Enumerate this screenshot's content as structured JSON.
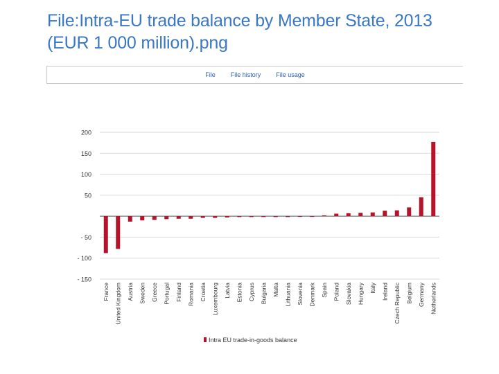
{
  "page": {
    "title": "File:Intra-EU trade balance by Member State, 2013 (EUR 1 000 million).png"
  },
  "tabs": [
    {
      "label": "File"
    },
    {
      "label": "File history"
    },
    {
      "label": "File usage"
    }
  ],
  "colors": {
    "title": "#3a77c5",
    "bar": "#b5132c",
    "link": "#2a5db0"
  },
  "chart_data": {
    "type": "bar",
    "title": "",
    "xlabel": "",
    "ylabel": "",
    "ylim": [
      -150,
      200
    ],
    "yticks": [
      200,
      150,
      100,
      50,
      0,
      -50,
      -100,
      -150
    ],
    "ytick_labels": [
      "200",
      "150",
      "100",
      "50",
      "",
      "- 50",
      "- 100",
      "- 150"
    ],
    "legend": "Intra EU trade-in-goods balance",
    "legend_position": "bottom-center",
    "categories": [
      "France",
      "United Kingdom",
      "Austria",
      "Sweden",
      "Greece",
      "Portugal",
      "Finland",
      "Romania",
      "Croatia",
      "Luxembourg",
      "Latvia",
      "Estonia",
      "Cyprus",
      "Bulgaria",
      "Malta",
      "Lithuania",
      "Slovenia",
      "Denmark",
      "Spain",
      "Poland",
      "Slovakia",
      "Hungary",
      "Italy",
      "Ireland",
      "Czech Republic",
      "Belgium",
      "Germany",
      "Netherlands"
    ],
    "values": [
      -88,
      -78,
      -13,
      -10,
      -9,
      -7,
      -6,
      -6,
      -4,
      -4,
      -3,
      -2,
      -2,
      -2,
      -2,
      -2,
      -1,
      -1,
      2,
      6,
      7,
      8,
      9,
      13,
      14,
      21,
      45,
      177
    ]
  }
}
